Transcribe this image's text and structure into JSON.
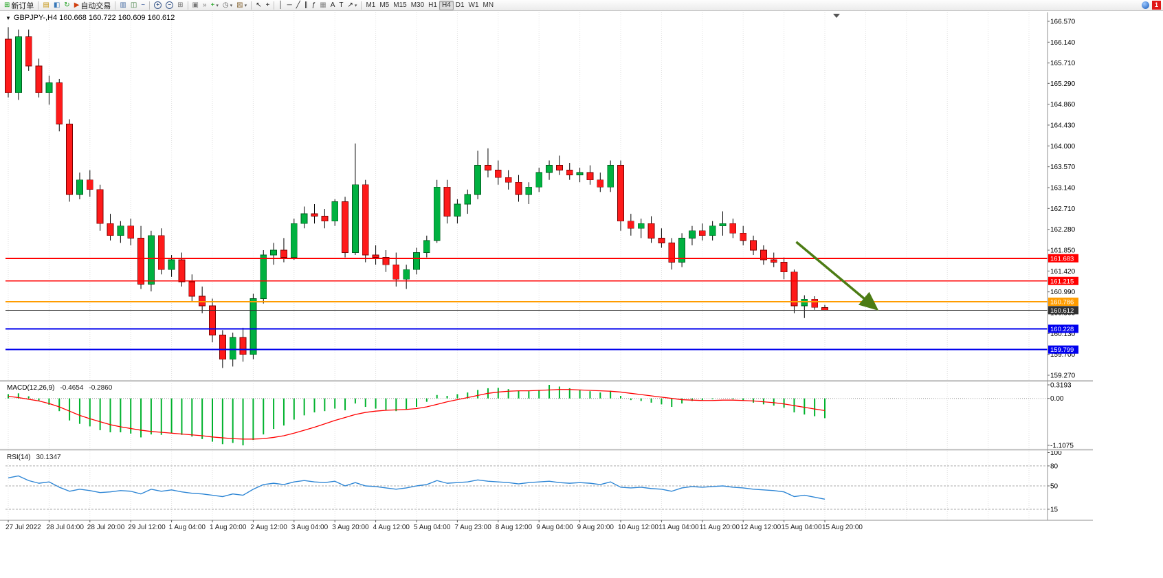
{
  "icons": {
    "caret_small": "▾",
    "caret_down": "▼"
  },
  "toolbar": {
    "notification_count": "1",
    "groups": [
      {
        "items": [
          {
            "name": "new-order",
            "icon": "order-chart-icon",
            "glyph": "⊞",
            "glyph_color": "#18a018",
            "label": "新订单"
          }
        ]
      },
      {
        "items": [
          {
            "name": "market-watch",
            "icon": "market-watch-icon",
            "glyph": "▤",
            "glyph_color": "#c89a1e"
          },
          {
            "name": "data-window",
            "icon": "data-window-icon",
            "glyph": "◧",
            "glyph_color": "#3878b8"
          },
          {
            "name": "refresh",
            "icon": "refresh-icon",
            "glyph": "↻",
            "glyph_color": "#1e9e1e"
          },
          {
            "name": "autotrading",
            "icon": "autotrading-icon",
            "glyph": "▶",
            "glyph_color": "#d04010",
            "label": "自动交易"
          }
        ]
      },
      {
        "items": [
          {
            "name": "bar-chart-mode",
            "icon": "bar-chart-icon",
            "glyph": "▥",
            "glyph_color": "#4a6fa5"
          },
          {
            "name": "candlestick-mode",
            "icon": "candlestick-icon",
            "glyph": "◫",
            "glyph_color": "#3a7a3a"
          },
          {
            "name": "line-chart-mode",
            "icon": "line-chart-icon",
            "glyph": "~",
            "glyph_color": "#3a5a9a"
          }
        ]
      },
      {
        "items": [
          {
            "name": "zoom-in",
            "icon": "zoom-in-icon",
            "lens": "+"
          },
          {
            "name": "zoom-out",
            "icon": "zoom-out-icon",
            "lens": "−"
          },
          {
            "name": "tile-windows",
            "icon": "tile-windows-icon",
            "glyph": "⊞",
            "glyph_color": "#777777"
          }
        ]
      },
      {
        "items": [
          {
            "name": "arrange-charts",
            "icon": "arrange-icon",
            "glyph": "▣",
            "glyph_color": "#777777"
          },
          {
            "name": "chart-shift",
            "icon": "chart-shift-icon",
            "glyph": "»",
            "glyph_color": "#777777"
          },
          {
            "name": "indicators",
            "icon": "add-indicator-icon",
            "glyph": "+",
            "glyph_color": "#18a018",
            "caret": true
          },
          {
            "name": "periods",
            "icon": "clock-icon",
            "glyph": "◷",
            "glyph_color": "#555555",
            "caret": true
          },
          {
            "name": "templates",
            "icon": "template-icon",
            "glyph": "▨",
            "glyph_color": "#8a6a3a",
            "caret": true
          }
        ]
      },
      {
        "items": [
          {
            "name": "cursor",
            "icon": "cursor-icon",
            "glyph": "↖",
            "glyph_color": "#222222"
          },
          {
            "name": "crosshair",
            "icon": "crosshair-icon",
            "glyph": "+",
            "glyph_color": "#222222"
          }
        ]
      },
      {
        "items": [
          {
            "name": "vertical-line",
            "icon": "vertical-line-icon",
            "glyph": "│",
            "glyph_color": "#222222"
          },
          {
            "name": "horizontal-line",
            "icon": "horizontal-line-icon",
            "glyph": "─",
            "glyph_color": "#222222"
          },
          {
            "name": "trendline",
            "icon": "trendline-icon",
            "glyph": "╱",
            "glyph_color": "#222222"
          },
          {
            "name": "channel",
            "icon": "channel-icon",
            "glyph": "∥",
            "glyph_color": "#222222"
          },
          {
            "name": "fibonacci",
            "icon": "fibonacci-icon",
            "glyph": "ƒ",
            "glyph_color": "#222222"
          },
          {
            "name": "grid-tool",
            "icon": "grid-icon",
            "glyph": "▦",
            "glyph_color": "#888888"
          },
          {
            "name": "text-tool",
            "icon": "text-icon",
            "glyph": "A",
            "glyph_color": "#222222"
          },
          {
            "name": "label-tool",
            "icon": "label-icon",
            "glyph": "T",
            "glyph_color": "#222222"
          },
          {
            "name": "arrow-shapes",
            "icon": "arrow-shapes-icon",
            "glyph": "↗",
            "glyph_color": "#222222",
            "caret": true
          }
        ]
      },
      {
        "items": [
          {
            "name": "tf-m1",
            "label": "M1",
            "tf": true
          },
          {
            "name": "tf-m5",
            "label": "M5",
            "tf": true
          },
          {
            "name": "tf-m15",
            "label": "M15",
            "tf": true
          },
          {
            "name": "tf-m30",
            "label": "M30",
            "tf": true
          },
          {
            "name": "tf-h1",
            "label": "H1",
            "tf": true
          },
          {
            "name": "tf-h4",
            "label": "H4",
            "tf": true,
            "active": true
          },
          {
            "name": "tf-d1",
            "label": "D1",
            "tf": true
          },
          {
            "name": "tf-w1",
            "label": "W1",
            "tf": true
          },
          {
            "name": "tf-mn",
            "label": "MN",
            "tf": true
          }
        ]
      }
    ]
  },
  "chart_data": [
    {
      "type": "candlestick",
      "title": "GBPJPY-,H4 160.668 160.722 160.609 160.612",
      "symbol": "GBPJPY-",
      "timeframe": "H4",
      "current": {
        "open": 160.668,
        "high": 160.722,
        "low": 160.609,
        "close": 160.612
      },
      "up_color": "#00b140",
      "down_color": "#fe1a1a",
      "price_axis_labels": [
        "166.570",
        "166.140",
        "165.710",
        "165.290",
        "164.860",
        "164.430",
        "164.000",
        "163.570",
        "163.140",
        "162.710",
        "162.280",
        "161.850",
        "161.420",
        "160.990",
        "160.560",
        "160.130",
        "159.700",
        "159.270"
      ],
      "time_labels": [
        "27 Jul 2022",
        "28 Jul 04:00",
        "28 Jul 20:00",
        "29 Jul 12:00",
        "1 Aug 04:00",
        "1 Aug 20:00",
        "2 Aug 12:00",
        "3 Aug 04:00",
        "3 Aug 20:00",
        "4 Aug 12:00",
        "5 Aug 04:00",
        "7 Aug 23:00",
        "8 Aug 12:00",
        "9 Aug 04:00",
        "9 Aug 20:00",
        "10 Aug 12:00",
        "11 Aug 04:00",
        "11 Aug 20:00",
        "12 Aug 12:00",
        "15 Aug 04:00",
        "15 Aug 20:00"
      ],
      "hlines": [
        {
          "value": 161.683,
          "label": "161.683",
          "color": "#ff0000",
          "width": 2
        },
        {
          "value": 161.215,
          "label": "161.215",
          "color": "#ff0000",
          "width": 1.5
        },
        {
          "value": 160.786,
          "label": "160.786",
          "color": "#ff9c00",
          "width": 2
        },
        {
          "value": 160.612,
          "label": "160.612",
          "color": "#303030",
          "width": 1
        },
        {
          "value": 160.228,
          "label": "160.228",
          "color": "#0000ee",
          "width": 2
        },
        {
          "value": 159.799,
          "label": "159.799",
          "color": "#0000ee",
          "width": 2
        }
      ],
      "arrow": {
        "x1_bar": 77.2,
        "y1_price": 162.02,
        "x2_bar": 85,
        "y2_price": 160.65,
        "color": "#4c7c14"
      },
      "ohlc": [
        [
          166.2,
          166.45,
          165.0,
          165.1
        ],
        [
          165.1,
          166.4,
          164.95,
          166.25
        ],
        [
          166.25,
          166.4,
          165.55,
          165.65
        ],
        [
          165.65,
          165.8,
          165.0,
          165.1
        ],
        [
          165.1,
          165.45,
          164.85,
          165.3
        ],
        [
          165.3,
          165.38,
          164.3,
          164.45
        ],
        [
          164.45,
          164.55,
          162.85,
          163.0
        ],
        [
          163.0,
          163.45,
          162.9,
          163.3
        ],
        [
          163.3,
          163.5,
          162.95,
          163.1
        ],
        [
          163.1,
          163.2,
          162.25,
          162.4
        ],
        [
          162.4,
          162.6,
          162.05,
          162.15
        ],
        [
          162.15,
          162.45,
          162.0,
          162.35
        ],
        [
          162.35,
          162.5,
          161.95,
          162.1
        ],
        [
          162.1,
          162.35,
          161.05,
          161.15
        ],
        [
          161.15,
          162.25,
          161.0,
          162.15
        ],
        [
          162.15,
          162.3,
          161.35,
          161.45
        ],
        [
          161.45,
          161.75,
          161.3,
          161.65
        ],
        [
          161.65,
          161.8,
          161.1,
          161.2
        ],
        [
          161.2,
          161.35,
          160.8,
          160.9
        ],
        [
          160.9,
          161.1,
          160.55,
          160.7
        ],
        [
          160.7,
          160.85,
          159.95,
          160.1
        ],
        [
          160.1,
          160.2,
          159.42,
          159.6
        ],
        [
          159.6,
          160.15,
          159.45,
          160.05
        ],
        [
          160.05,
          160.25,
          159.55,
          159.7
        ],
        [
          159.7,
          160.95,
          159.6,
          160.85
        ],
        [
          160.85,
          161.85,
          160.75,
          161.75
        ],
        [
          161.75,
          162.0,
          161.55,
          161.85
        ],
        [
          161.85,
          162.1,
          161.6,
          161.7
        ],
        [
          161.7,
          162.5,
          161.65,
          162.4
        ],
        [
          162.4,
          162.75,
          162.3,
          162.6
        ],
        [
          162.6,
          162.8,
          162.4,
          162.55
        ],
        [
          162.55,
          162.7,
          162.3,
          162.45
        ],
        [
          162.45,
          162.9,
          162.35,
          162.85
        ],
        [
          162.85,
          162.95,
          161.7,
          161.8
        ],
        [
          161.8,
          164.05,
          161.75,
          163.2
        ],
        [
          163.2,
          163.3,
          161.6,
          161.75
        ],
        [
          161.75,
          161.95,
          161.55,
          161.7
        ],
        [
          161.7,
          161.85,
          161.4,
          161.55
        ],
        [
          161.55,
          161.8,
          161.1,
          161.25
        ],
        [
          161.25,
          161.55,
          161.05,
          161.45
        ],
        [
          161.45,
          161.9,
          161.35,
          161.8
        ],
        [
          161.8,
          162.15,
          161.7,
          162.05
        ],
        [
          162.05,
          163.3,
          162.0,
          163.15
        ],
        [
          163.15,
          163.3,
          162.4,
          162.55
        ],
        [
          162.55,
          162.9,
          162.4,
          162.8
        ],
        [
          162.8,
          163.1,
          162.6,
          163.0
        ],
        [
          163.0,
          163.9,
          162.9,
          163.6
        ],
        [
          163.6,
          163.95,
          163.35,
          163.5
        ],
        [
          163.5,
          163.7,
          163.2,
          163.35
        ],
        [
          163.35,
          163.5,
          163.1,
          163.25
        ],
        [
          163.25,
          163.4,
          162.85,
          163.0
        ],
        [
          163.0,
          163.25,
          162.8,
          163.15
        ],
        [
          163.15,
          163.55,
          163.05,
          163.45
        ],
        [
          163.45,
          163.7,
          163.3,
          163.6
        ],
        [
          163.6,
          163.8,
          163.4,
          163.5
        ],
        [
          163.5,
          163.65,
          163.3,
          163.4
        ],
        [
          163.4,
          163.55,
          163.25,
          163.45
        ],
        [
          163.45,
          163.6,
          163.2,
          163.3
        ],
        [
          163.3,
          163.45,
          163.05,
          163.15
        ],
        [
          163.15,
          163.7,
          163.05,
          163.6
        ],
        [
          163.6,
          163.7,
          162.25,
          162.45
        ],
        [
          162.45,
          162.6,
          162.15,
          162.3
        ],
        [
          162.3,
          162.5,
          162.1,
          162.4
        ],
        [
          162.4,
          162.55,
          162.0,
          162.1
        ],
        [
          162.1,
          162.3,
          161.9,
          162.0
        ],
        [
          162.0,
          162.1,
          161.45,
          161.6
        ],
        [
          161.6,
          162.2,
          161.5,
          162.1
        ],
        [
          162.1,
          162.35,
          161.95,
          162.25
        ],
        [
          162.25,
          162.4,
          162.05,
          162.15
        ],
        [
          162.15,
          162.45,
          162.05,
          162.35
        ],
        [
          162.35,
          162.65,
          162.15,
          162.4
        ],
        [
          162.4,
          162.5,
          162.1,
          162.2
        ],
        [
          162.2,
          162.35,
          161.95,
          162.05
        ],
        [
          162.05,
          162.15,
          161.75,
          161.85
        ],
        [
          161.85,
          161.95,
          161.55,
          161.65
        ],
        [
          161.65,
          161.8,
          161.5,
          161.6
        ],
        [
          161.6,
          161.7,
          161.25,
          161.4
        ],
        [
          161.4,
          161.45,
          160.55,
          160.7
        ],
        [
          160.7,
          160.92,
          160.45,
          160.84
        ],
        [
          160.84,
          160.9,
          160.62,
          160.67
        ],
        [
          160.668,
          160.722,
          160.609,
          160.612
        ]
      ]
    },
    {
      "type": "bar",
      "name": "MACD",
      "label": "MACD(12,26,9)",
      "value_main": "-0.4654",
      "value_signal": "-0.2860",
      "histogram_color": "#00b22d",
      "signal_color": "#ff0000",
      "axis_labels": [
        "0.3193",
        "0.00",
        "-1.1075"
      ],
      "histogram": [
        0.1,
        0.12,
        0.05,
        -0.05,
        -0.15,
        -0.3,
        -0.52,
        -0.6,
        -0.66,
        -0.75,
        -0.8,
        -0.8,
        -0.83,
        -0.92,
        -0.85,
        -0.86,
        -0.82,
        -0.86,
        -0.9,
        -0.96,
        -1.02,
        -1.08,
        -1.05,
        -1.1075,
        -0.98,
        -0.85,
        -0.72,
        -0.64,
        -0.5,
        -0.4,
        -0.33,
        -0.3,
        -0.24,
        -0.28,
        -0.12,
        -0.2,
        -0.24,
        -0.27,
        -0.3,
        -0.26,
        -0.2,
        -0.08,
        0.08,
        0.06,
        0.1,
        0.14,
        0.2,
        0.24,
        0.25,
        0.22,
        0.18,
        0.17,
        0.2,
        0.3193,
        0.28,
        0.24,
        0.2,
        0.17,
        0.14,
        0.18,
        0.06,
        -0.04,
        -0.06,
        -0.1,
        -0.14,
        -0.2,
        -0.12,
        -0.06,
        -0.05,
        -0.02,
        0.0,
        -0.02,
        -0.06,
        -0.1,
        -0.14,
        -0.17,
        -0.22,
        -0.33,
        -0.38,
        -0.42,
        -0.4654
      ],
      "signal": [
        0.05,
        0.02,
        -0.02,
        -0.06,
        -0.12,
        -0.2,
        -0.3,
        -0.4,
        -0.48,
        -0.55,
        -0.62,
        -0.67,
        -0.71,
        -0.75,
        -0.78,
        -0.8,
        -0.82,
        -0.84,
        -0.86,
        -0.88,
        -0.91,
        -0.93,
        -0.95,
        -0.96,
        -0.96,
        -0.95,
        -0.92,
        -0.88,
        -0.82,
        -0.75,
        -0.68,
        -0.6,
        -0.52,
        -0.45,
        -0.38,
        -0.33,
        -0.3,
        -0.28,
        -0.27,
        -0.26,
        -0.24,
        -0.2,
        -0.14,
        -0.08,
        -0.03,
        0.02,
        0.07,
        0.12,
        0.15,
        0.17,
        0.18,
        0.18,
        0.19,
        0.2,
        0.21,
        0.21,
        0.2,
        0.19,
        0.18,
        0.17,
        0.15,
        0.12,
        0.09,
        0.06,
        0.03,
        0.0,
        -0.03,
        -0.04,
        -0.05,
        -0.05,
        -0.04,
        -0.04,
        -0.05,
        -0.06,
        -0.08,
        -0.1,
        -0.13,
        -0.17,
        -0.21,
        -0.25,
        -0.286
      ]
    },
    {
      "type": "line",
      "name": "RSI",
      "label": "RSI(14)",
      "value": "30.1347",
      "line_color": "#2e86d5",
      "axis_labels": [
        "100",
        "80",
        "50",
        "15"
      ],
      "levels": [
        80,
        50,
        15
      ],
      "values": [
        62,
        65,
        58,
        54,
        56,
        48,
        42,
        45,
        43,
        40,
        41,
        43,
        42,
        38,
        45,
        42,
        44,
        41,
        39,
        38,
        36,
        34,
        38,
        36,
        45,
        52,
        54,
        52,
        56,
        58,
        56,
        55,
        57,
        50,
        55,
        50,
        49,
        47,
        45,
        47,
        50,
        52,
        58,
        54,
        55,
        56,
        59,
        57,
        56,
        55,
        53,
        55,
        56,
        57,
        55,
        54,
        55,
        54,
        52,
        56,
        48,
        47,
        48,
        46,
        45,
        42,
        47,
        49,
        48,
        49,
        50,
        48,
        47,
        45,
        44,
        43,
        41,
        34,
        36,
        33,
        30.1347
      ]
    }
  ]
}
